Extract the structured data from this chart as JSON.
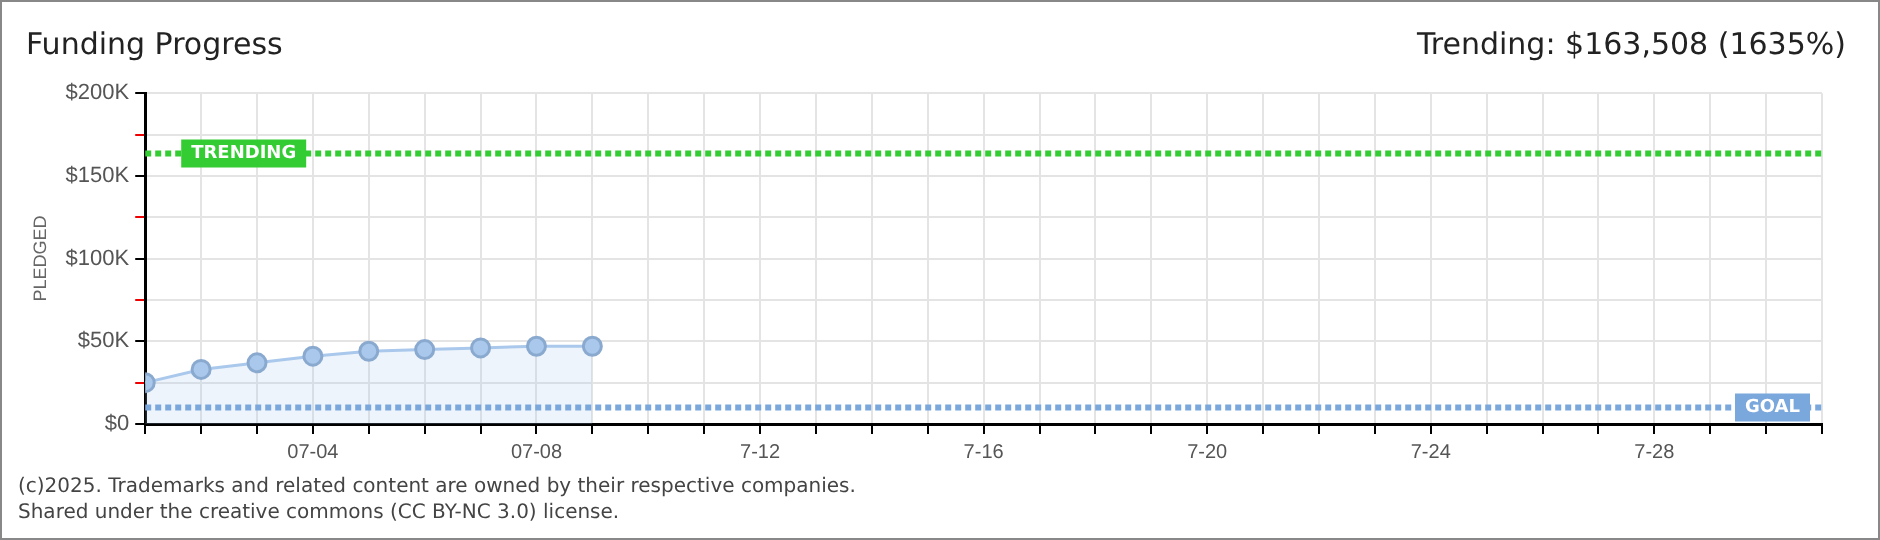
{
  "chart_data": {
    "type": "area",
    "title": "Funding Progress",
    "subtitle": "Trending: $163,508 (1635%)",
    "ylabel": "PLEDGED",
    "x": [
      "--07-01",
      "--07-02",
      "--07-03",
      "--07-04",
      "--07-05",
      "--07-06",
      "--07-07",
      "--07-08",
      "--07-09"
    ],
    "series": [
      {
        "color": "#a9c8ec",
        "values": [
          25000,
          33000,
          37000,
          41000,
          44000,
          45000,
          46000,
          47000,
          47000
        ]
      }
    ],
    "xlim": [
      "--07-01",
      "--07-31"
    ],
    "xticks": [
      {
        "value": "--07-01",
        "label": null
      },
      {
        "value": "--07-02",
        "label": null
      },
      {
        "value": "--07-03",
        "label": null
      },
      {
        "value": "--07-04",
        "label": "07-04"
      },
      {
        "value": "--07-05",
        "label": null
      },
      {
        "value": "--07-06",
        "label": null
      },
      {
        "value": "--07-07",
        "label": null
      },
      {
        "value": "--07-08",
        "label": "07-08"
      },
      {
        "value": "--07-09",
        "label": null
      },
      {
        "value": "--07-10",
        "label": null
      },
      {
        "value": "--07-11",
        "label": null
      },
      {
        "value": "--07-12",
        "label": "7-12"
      },
      {
        "value": "--07-13",
        "label": null
      },
      {
        "value": "--07-14",
        "label": null
      },
      {
        "value": "--07-15",
        "label": null
      },
      {
        "value": "--07-16",
        "label": "7-16"
      },
      {
        "value": "--07-17",
        "label": null
      },
      {
        "value": "--07-18",
        "label": null
      },
      {
        "value": "--07-19",
        "label": null
      },
      {
        "value": "--07-20",
        "label": "7-20"
      },
      {
        "value": "--07-21",
        "label": null
      },
      {
        "value": "--07-22",
        "label": null
      },
      {
        "value": "--07-23",
        "label": null
      },
      {
        "value": "--07-24",
        "label": "7-24"
      },
      {
        "value": "--07-25",
        "label": null
      },
      {
        "value": "--07-26",
        "label": null
      },
      {
        "value": "--07-27",
        "label": null
      },
      {
        "value": "--07-28",
        "label": "7-28"
      },
      {
        "value": "--07-29",
        "label": null
      },
      {
        "value": "--07-30",
        "label": null
      },
      {
        "value": "--07-31",
        "label": null
      }
    ],
    "ylim": [
      0,
      200000
    ],
    "yticks": [
      {
        "value": 0,
        "label": "$0"
      },
      {
        "value": 25000,
        "label": null
      },
      {
        "value": 50000,
        "label": "$50K"
      },
      {
        "value": 75000,
        "label": null
      },
      {
        "value": 100000,
        "label": "$100K"
      },
      {
        "value": 125000,
        "label": null
      },
      {
        "value": 150000,
        "label": "$150K"
      },
      {
        "value": 175000,
        "label": null
      },
      {
        "value": 200000,
        "label": "$200K"
      }
    ],
    "grid": true,
    "marker": "circle",
    "ref_lines": [
      {
        "axis": "y",
        "value": 163508,
        "label": "TRENDING",
        "color": "#33cc33"
      },
      {
        "axis": "y",
        "value": 10000,
        "label": "GOAL",
        "color": "#7aa7dc"
      }
    ],
    "annotations": [
      "(c)2025. Trademarks and related content are owned by their respective companies.",
      "Shared under the creative commons (CC BY-NC 3.0) license."
    ]
  }
}
